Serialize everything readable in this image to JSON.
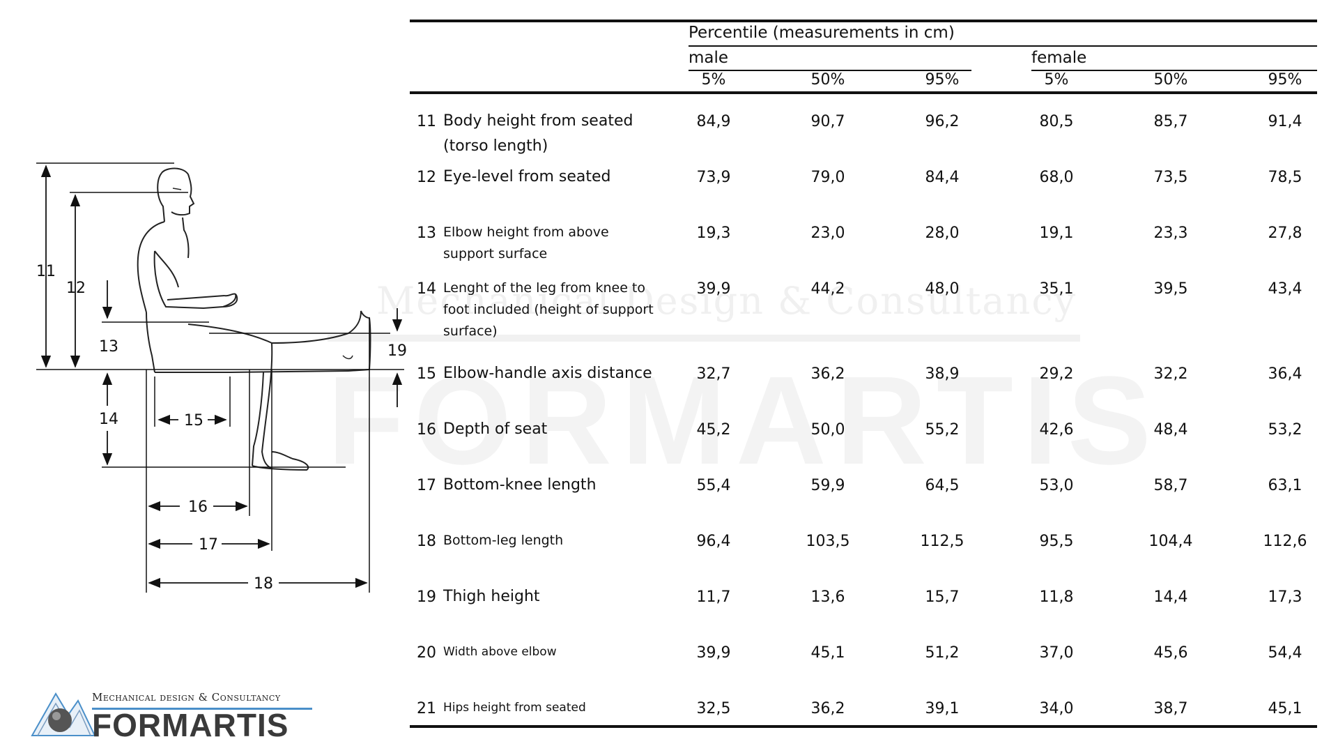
{
  "header": {
    "title": "Percentile (measurements in cm)",
    "groups": [
      "male",
      "female"
    ],
    "percentiles": [
      "5%",
      "50%",
      "95%",
      "5%",
      "50%",
      "95%"
    ]
  },
  "rows": [
    {
      "num": "11",
      "label": "Body height from seated (torso length)",
      "values": [
        "84,9",
        "90,7",
        "96,2",
        "80,5",
        "85,7",
        "91,4"
      ]
    },
    {
      "num": "12",
      "label": "Eye-level from seated",
      "values": [
        "73,9",
        "79,0",
        "84,4",
        "68,0",
        "73,5",
        "78,5"
      ]
    },
    {
      "num": "13",
      "label": "Elbow height from above support surface",
      "values": [
        "19,3",
        "23,0",
        "28,0",
        "19,1",
        "23,3",
        "27,8"
      ]
    },
    {
      "num": "14",
      "label": "Lenght of the leg from knee to foot included (height of support surface)",
      "values": [
        "39,9",
        "44,2",
        "48,0",
        "35,1",
        "39,5",
        "43,4"
      ]
    },
    {
      "num": "15",
      "label": "Elbow-handle axis distance",
      "values": [
        "32,7",
        "36,2",
        "38,9",
        "29,2",
        "32,2",
        "36,4"
      ]
    },
    {
      "num": "16",
      "label": "Depth of seat",
      "values": [
        "45,2",
        "50,0",
        "55,2",
        "42,6",
        "48,4",
        "53,2"
      ]
    },
    {
      "num": "17",
      "label": "Bottom-knee length",
      "values": [
        "55,4",
        "59,9",
        "64,5",
        "53,0",
        "58,7",
        "63,1"
      ]
    },
    {
      "num": "18",
      "label": "Bottom-leg length",
      "values": [
        "96,4",
        "103,5",
        "112,5",
        "95,5",
        "104,4",
        "112,6"
      ]
    },
    {
      "num": "19",
      "label": "Thigh height",
      "values": [
        "11,7",
        "13,6",
        "15,7",
        "11,8",
        "14,4",
        "17,3"
      ]
    },
    {
      "num": "20",
      "label": "Width above elbow",
      "values": [
        "39,9",
        "45,1",
        "51,2",
        "37,0",
        "45,6",
        "54,4"
      ]
    },
    {
      "num": "21",
      "label": "Hips height from seated",
      "values": [
        "32,5",
        "36,2",
        "39,1",
        "34,0",
        "38,7",
        "45,1"
      ]
    }
  ],
  "figure_labels": {
    "d11": "11",
    "d12": "12",
    "d13": "13",
    "d14": "14",
    "d15": "15",
    "d16": "16",
    "d17": "17",
    "d18": "18",
    "d19": "19"
  },
  "watermark": {
    "line1": "Mechanical Design & Consultancy",
    "line2": "FORMARTIS"
  },
  "logo": {
    "tagline": "Mechanical design & Consultancy",
    "name": "FORMARTIS",
    "accent_color": "#4a8fc9"
  }
}
